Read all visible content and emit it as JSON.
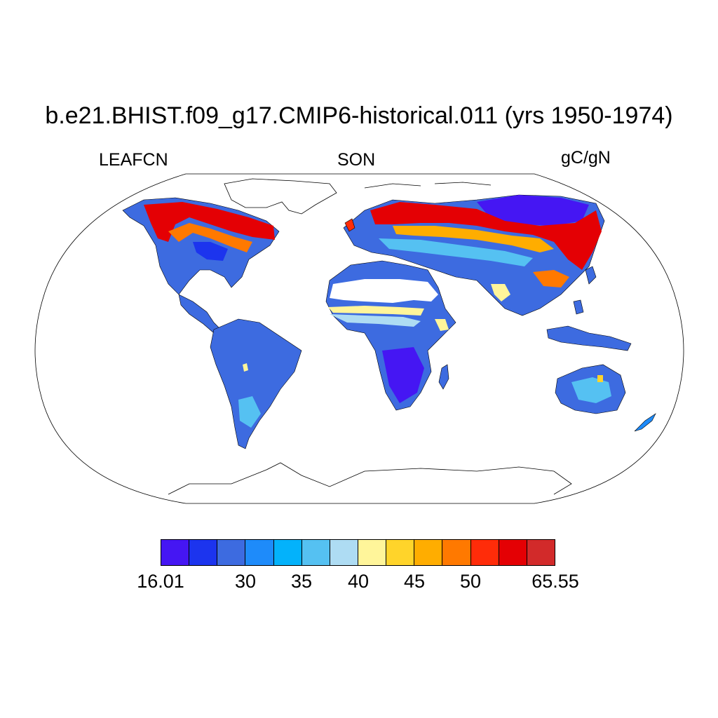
{
  "title": "b.e21.BHIST.f09_g17.CMIP6-historical.011 (yrs 1950-1974)",
  "left_string": "LEAFCN",
  "center_string": "SON",
  "right_string": "gC/gN",
  "colorbar": {
    "colors": [
      "#4516f3",
      "#1c34ee",
      "#3d6be0",
      "#1e8bfa",
      "#03b2fb",
      "#55c1f2",
      "#aedcf3",
      "#fff59a",
      "#ffd42a",
      "#ffad00",
      "#ff7900",
      "#ff2c09",
      "#e40004",
      "#d22a2a"
    ],
    "labels": [
      "16.01",
      "30",
      "35",
      "40",
      "45",
      "50",
      "65.55"
    ]
  },
  "projection": "Robinson"
}
